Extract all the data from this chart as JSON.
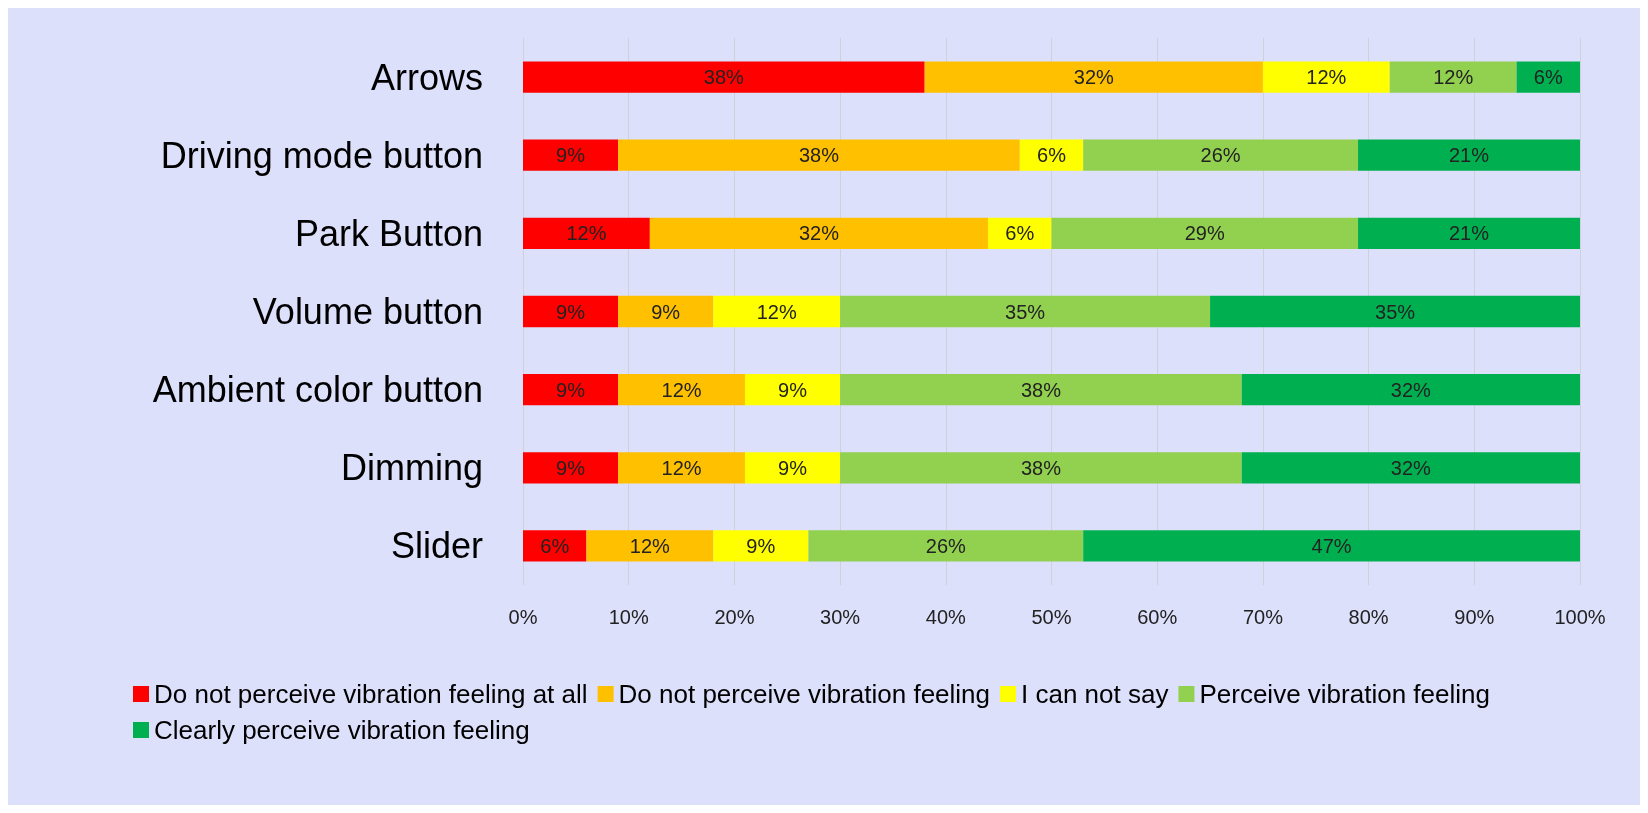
{
  "chart_data": {
    "type": "bar",
    "orientation": "horizontal",
    "stacked": true,
    "categories": [
      "Arrows",
      "Driving mode button",
      "Park Button",
      "Volume button",
      "Ambient color button",
      "Dimming",
      "Slider"
    ],
    "series": [
      {
        "name": "Do not perceive vibration feeling at all",
        "color": "#ff0000",
        "values": [
          38,
          9,
          12,
          9,
          9,
          9,
          6
        ],
        "value_labels": [
          "38%",
          "9%",
          "12%",
          "9%",
          "9%",
          "9%",
          "6%"
        ]
      },
      {
        "name": "Do not perceive vibration feeling",
        "color": "#ffc000",
        "values": [
          32,
          38,
          32,
          9,
          12,
          12,
          12
        ],
        "value_labels": [
          "32%",
          "38%",
          "32%",
          "9%",
          "12%",
          "12%",
          "12%"
        ]
      },
      {
        "name": "I can not say",
        "color": "#ffff00",
        "values": [
          12,
          6,
          6,
          12,
          9,
          9,
          9
        ],
        "value_labels": [
          "12%",
          "6%",
          "6%",
          "12%",
          "9%",
          "9%",
          "9%"
        ]
      },
      {
        "name": "Perceive vibration feeling",
        "color": "#92d050",
        "values": [
          12,
          26,
          29,
          35,
          38,
          38,
          26
        ],
        "value_labels": [
          "12%",
          "26%",
          "29%",
          "35%",
          "38%",
          "38%",
          "26%"
        ]
      },
      {
        "name": "Clearly perceive vibration feeling",
        "color": "#00b050",
        "values": [
          6,
          21,
          21,
          35,
          32,
          32,
          47
        ],
        "value_labels": [
          "6%",
          "21%",
          "21%",
          "35%",
          "32%",
          "32%",
          "47%"
        ]
      }
    ],
    "xlim": [
      0,
      100
    ],
    "xticks": [
      {
        "value": 0,
        "label": "0%"
      },
      {
        "value": 10,
        "label": "10%"
      },
      {
        "value": 20,
        "label": "20%"
      },
      {
        "value": 30,
        "label": "30%"
      },
      {
        "value": 40,
        "label": "40%"
      },
      {
        "value": 50,
        "label": "50%"
      },
      {
        "value": 60,
        "label": "60%"
      },
      {
        "value": 70,
        "label": "70%"
      },
      {
        "value": 80,
        "label": "80%"
      },
      {
        "value": 90,
        "label": "90%"
      },
      {
        "value": 100,
        "label": "100%"
      }
    ],
    "grid": "x",
    "legend": "bottom"
  }
}
